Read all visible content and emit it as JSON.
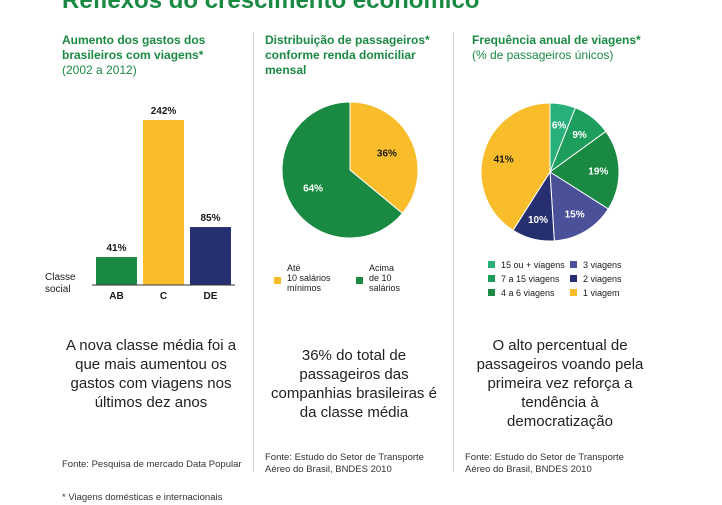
{
  "title": "Reflexos do crescimento econômico",
  "col1": {
    "heading": "Aumento dos gastos dos brasileiros com viagens*",
    "subheading": "(2002 a 2012)",
    "axis_label": "Classe social",
    "big_text": "A nova classe média foi a que mais aumentou os gastos com viagens nos últimos dez anos",
    "source": "Fonte: Pesquisa de mercado Data Popular"
  },
  "col2": {
    "heading": "Distribuição de passageiros* conforme renda domiciliar mensal",
    "big_text": "36% do total de passageiros das companhias brasileiras é da classe média",
    "source": "Fonte: Estudo do Setor de Transporte Aéreo do Brasil, BNDES 2010"
  },
  "col3": {
    "heading": "Frequência anual de viagens*",
    "subheading": "(% de passageiros únicos)",
    "big_text": "O alto percentual de passageiros voando pela primeira vez reforça a tendência à democratização",
    "source": "Fonte: Estudo do Setor de Transporte Aéreo do Brasil, BNDES 2010"
  },
  "footnote": "* Viagens domésticas e internacionais",
  "chart_data": [
    {
      "type": "bar",
      "categories": [
        "AB",
        "C",
        "DE"
      ],
      "values": [
        41,
        242,
        85
      ],
      "value_labels": [
        "41%",
        "242%",
        "85%"
      ],
      "colors": [
        "#1a8a43",
        "#f9bd2b",
        "#262f6f"
      ],
      "xlabel": "Classe social",
      "ylim": [
        0,
        242
      ]
    },
    {
      "type": "pie",
      "labels": [
        "Até 10 salários mínimos",
        "Acima de 10 salários mínimos"
      ],
      "values": [
        36,
        64
      ],
      "value_labels": [
        "36%",
        "64%"
      ],
      "colors": [
        "#f9bd2b",
        "#1a8a43"
      ]
    },
    {
      "type": "pie",
      "labels": [
        "15 ou + viagens",
        "7 a 15 viagens",
        "4 a 6 viagens",
        "3 viagens",
        "2 viagens",
        "1 viagem"
      ],
      "values": [
        6,
        9,
        19,
        15,
        10,
        41
      ],
      "value_labels": [
        "6%",
        "9%",
        "19%",
        "15%",
        "10%",
        "41%"
      ],
      "colors": [
        "#27b07a",
        "#1d9e5c",
        "#1a8a43",
        "#4b5199",
        "#262f6f",
        "#f9bd2b"
      ]
    }
  ]
}
